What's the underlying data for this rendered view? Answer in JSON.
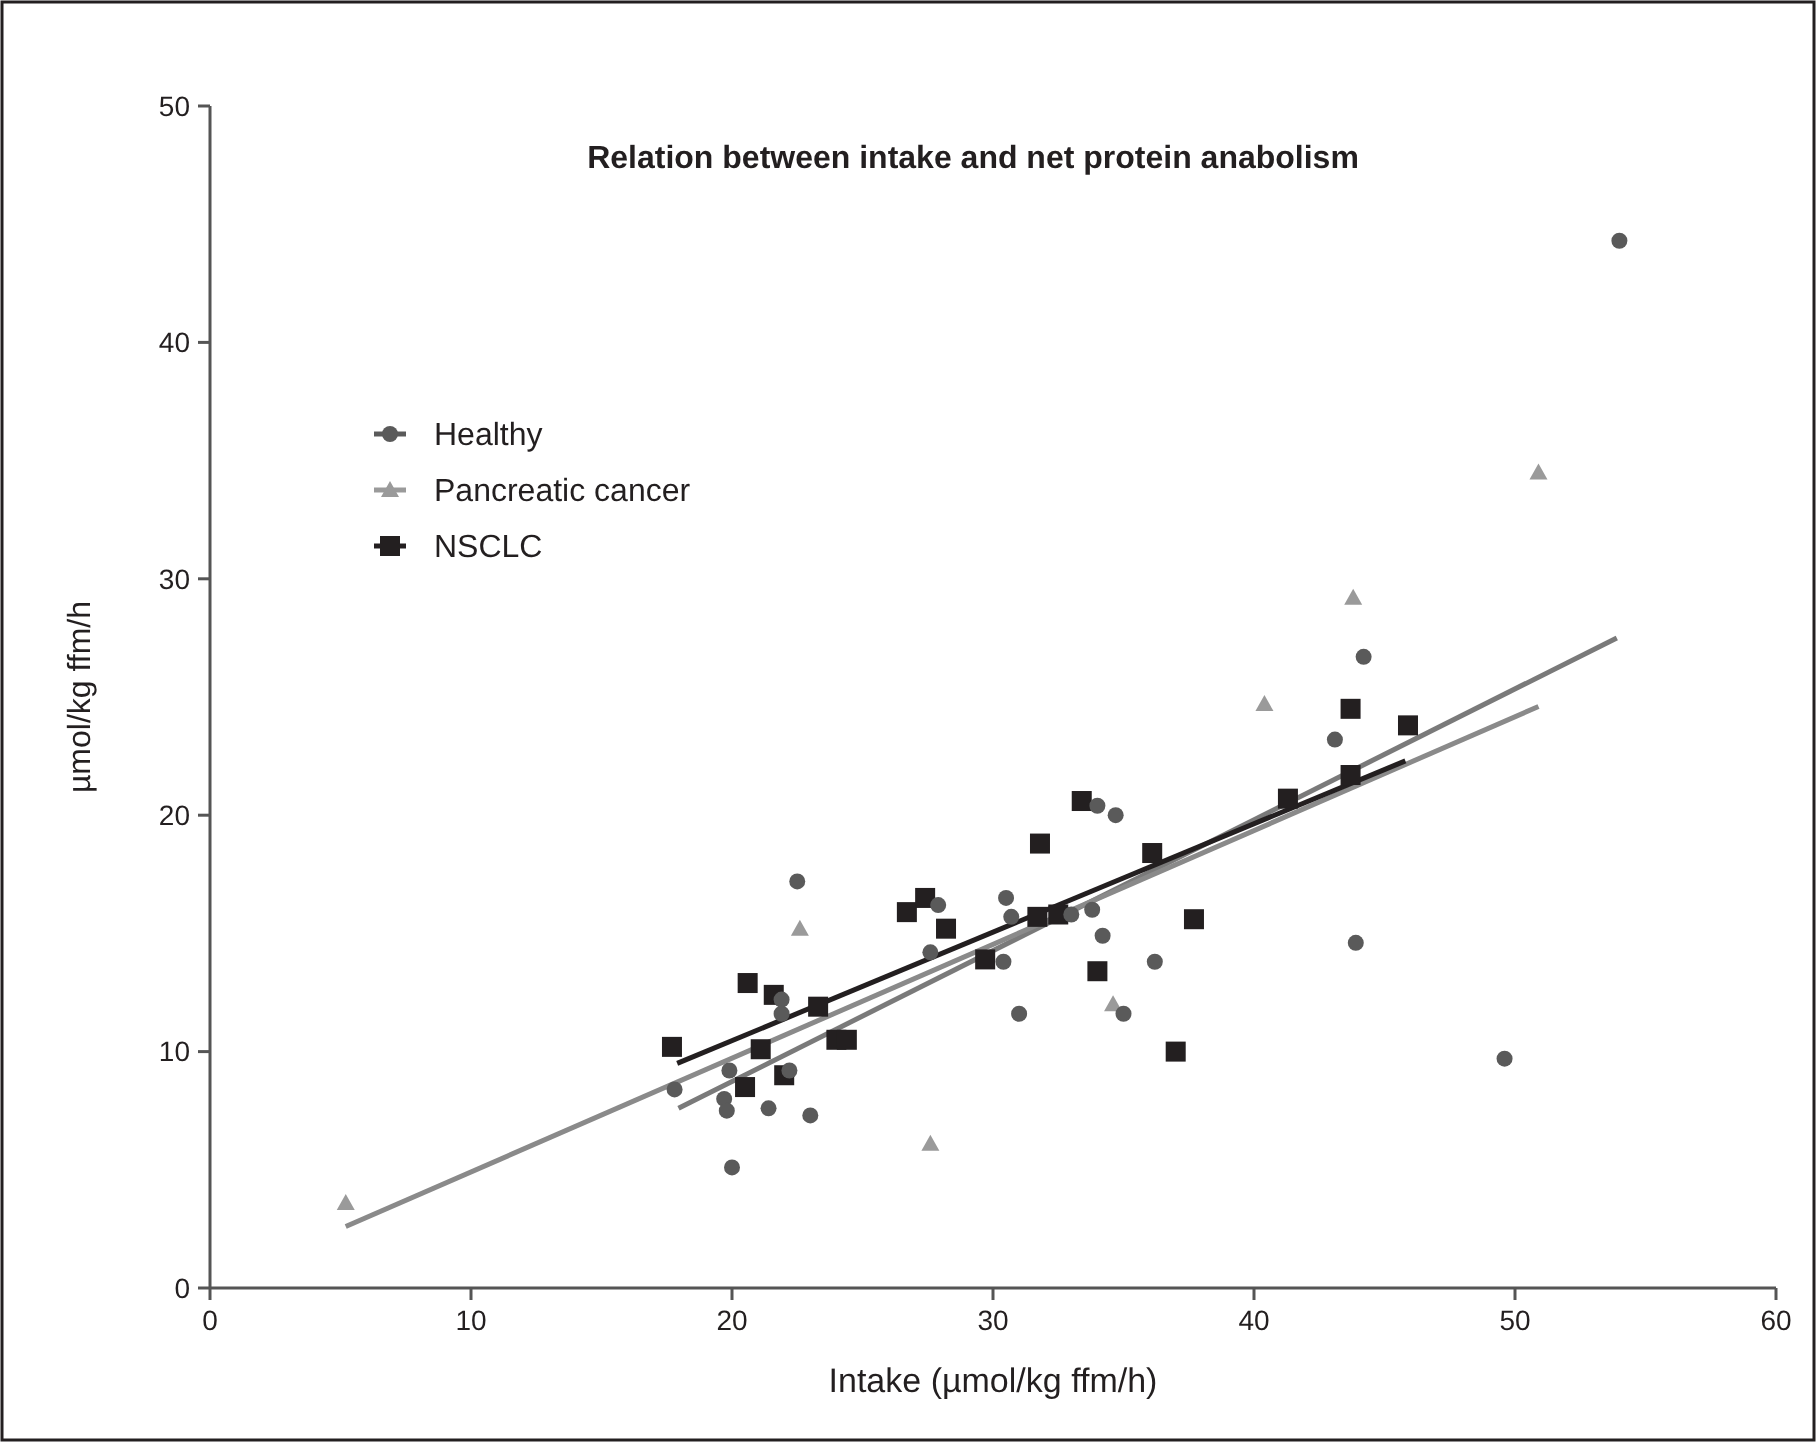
{
  "chart_data": {
    "type": "scatter",
    "title": "Relation between intake and net protein anabolism",
    "xlabel": "Intake (µmol/kg ffm/h)",
    "ylabel": "µmol/kg ffm/h",
    "xlim": [
      0,
      60
    ],
    "xticks": [
      0,
      10,
      20,
      30,
      40,
      50,
      60
    ],
    "ylim": [
      0,
      50
    ],
    "yticks": [
      0,
      10,
      20,
      30,
      40,
      50
    ],
    "grid": false,
    "legend": "left",
    "series": [
      {
        "name": "Healthy",
        "marker": "circle",
        "color": "#5a5a5a",
        "x": [
          17.8,
          22.5,
          19.9,
          19.7,
          19.8,
          21.4,
          23.0,
          21.9,
          21.9,
          22.2,
          20.0,
          27.9,
          27.6,
          30.5,
          30.7,
          30.4,
          31.0,
          33.0,
          33.8,
          34.2,
          34.0,
          34.7,
          35.0,
          36.2,
          43.1,
          44.2,
          43.9,
          49.6,
          54.0
        ],
        "values": [
          8.4,
          17.2,
          9.2,
          8.0,
          7.5,
          7.6,
          7.3,
          12.2,
          11.6,
          9.2,
          5.1,
          16.2,
          14.2,
          16.5,
          15.7,
          13.8,
          11.6,
          15.8,
          16.0,
          14.9,
          20.4,
          20.0,
          11.6,
          13.8,
          23.2,
          26.7,
          14.6,
          9.7,
          44.3
        ]
      },
      {
        "name": "Pancreatic cancer",
        "marker": "triangle",
        "color": "#9a9a9a",
        "x": [
          5.2,
          22.6,
          27.6,
          34.6,
          40.4,
          43.8,
          50.9
        ],
        "values": [
          3.6,
          15.2,
          6.1,
          12.0,
          24.7,
          29.2,
          34.5
        ]
      },
      {
        "name": "NSCLC",
        "marker": "square",
        "color": "#231f20",
        "x": [
          17.7,
          20.6,
          21.6,
          23.3,
          21.1,
          20.5,
          22.0,
          24.0,
          24.4,
          26.7,
          27.4,
          28.2,
          29.7,
          31.8,
          31.7,
          32.5,
          33.4,
          34.0,
          36.1,
          37.7,
          37.0,
          41.3,
          43.7,
          43.7,
          45.9
        ],
        "values": [
          10.2,
          12.9,
          12.4,
          11.9,
          10.1,
          8.5,
          9.0,
          10.5,
          10.5,
          15.9,
          16.5,
          15.2,
          13.9,
          18.8,
          15.7,
          15.8,
          20.6,
          13.4,
          18.4,
          15.6,
          10.0,
          20.7,
          21.7,
          24.5,
          23.8
        ]
      },
      {
        "type": "line",
        "marker": "none",
        "color": "#7a7a7a",
        "x": [
          17.95,
          53.9
        ],
        "values": [
          7.6,
          27.5
        ]
      },
      {
        "type": "line",
        "marker": "none",
        "color": "#8a8a8a",
        "x": [
          5.2,
          50.9
        ],
        "values": [
          2.6,
          24.6
        ]
      },
      {
        "type": "line",
        "marker": "none",
        "color": "#231f20",
        "x": [
          17.9,
          45.8
        ],
        "values": [
          9.5,
          22.3
        ]
      }
    ]
  }
}
